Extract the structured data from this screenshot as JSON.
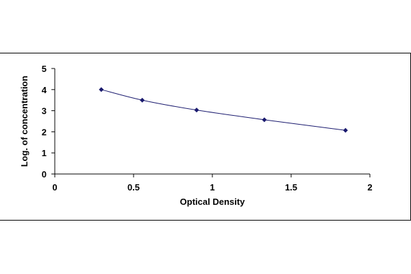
{
  "chart_data": {
    "type": "scatter",
    "title": "",
    "xlabel": "Optical Density",
    "ylabel": "Log. of concentration",
    "xlim": [
      0,
      2
    ],
    "ylim": [
      0,
      5
    ],
    "x_ticks": [
      0,
      0.5,
      1,
      1.5,
      2
    ],
    "x_tick_labels": [
      "0",
      "0.5",
      "1",
      "1.5",
      "2"
    ],
    "y_ticks": [
      0,
      1,
      2,
      3,
      4,
      5
    ],
    "y_tick_labels": [
      "0",
      "1",
      "2",
      "3",
      "4",
      "5"
    ],
    "grid": false,
    "legend": "none",
    "series": [
      {
        "x": [
          0.295,
          0.555,
          0.9,
          1.33,
          1.845
        ],
        "y": [
          4.0,
          3.5,
          3.03,
          2.57,
          2.07
        ],
        "marker": "diamond",
        "color": "#1a1a6e",
        "trendline": true,
        "trendline_color": "#1a1a6e"
      }
    ]
  }
}
